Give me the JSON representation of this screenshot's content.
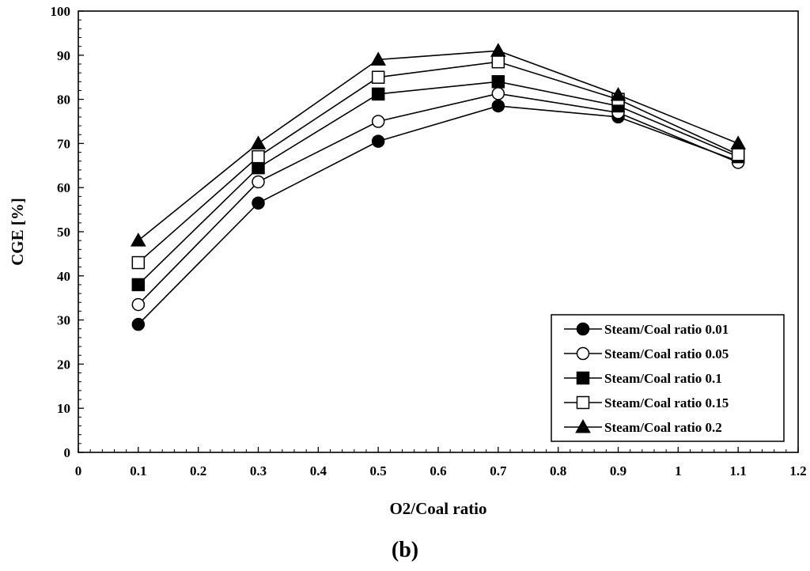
{
  "chart_data": {
    "type": "line",
    "title": "",
    "xlabel": "O2/Coal ratio",
    "ylabel": "CGE [%]",
    "xlim": [
      0,
      1.2
    ],
    "ylim": [
      0,
      100
    ],
    "xticks": [
      0,
      0.1,
      0.2,
      0.3,
      0.4,
      0.5,
      0.6,
      0.7,
      0.8,
      0.9,
      1,
      1.1,
      1.2
    ],
    "xtick_labels": [
      "0",
      "0.1",
      "0.2",
      "0.3",
      "0.4",
      "0.5",
      "0.6",
      "0.7",
      "0.8",
      "0.9",
      "1",
      "1.1",
      "1.2"
    ],
    "yticks": [
      0,
      10,
      20,
      30,
      40,
      50,
      60,
      70,
      80,
      90,
      100
    ],
    "ytick_labels": [
      "0",
      "10",
      "20",
      "30",
      "40",
      "50",
      "60",
      "70",
      "80",
      "90",
      "100"
    ],
    "grid": false,
    "legend_position": "bottom-right",
    "x": [
      0.1,
      0.3,
      0.5,
      0.7,
      0.9,
      1.1
    ],
    "series": [
      {
        "name": "Steam/Coal ratio 0.01",
        "marker": "circle-filled",
        "values": [
          29,
          56.5,
          70.5,
          78.5,
          76,
          66
        ]
      },
      {
        "name": "Steam/Coal ratio 0.05",
        "marker": "circle-open",
        "values": [
          33.5,
          61.3,
          75,
          81.3,
          77,
          65.7
        ]
      },
      {
        "name": "Steam/Coal ratio 0.1",
        "marker": "square-filled",
        "values": [
          38,
          64.5,
          81.2,
          84,
          78.5,
          67
        ]
      },
      {
        "name": "Steam/Coal ratio 0.15",
        "marker": "square-open",
        "values": [
          43,
          67,
          85,
          88.5,
          80,
          67.5
        ]
      },
      {
        "name": "Steam/Coal ratio 0.2",
        "marker": "triangle-filled",
        "values": [
          48,
          70,
          89,
          91,
          81,
          70
        ]
      }
    ]
  },
  "caption": "(b)",
  "colors": {
    "line": "#000000",
    "background": "#ffffff"
  }
}
